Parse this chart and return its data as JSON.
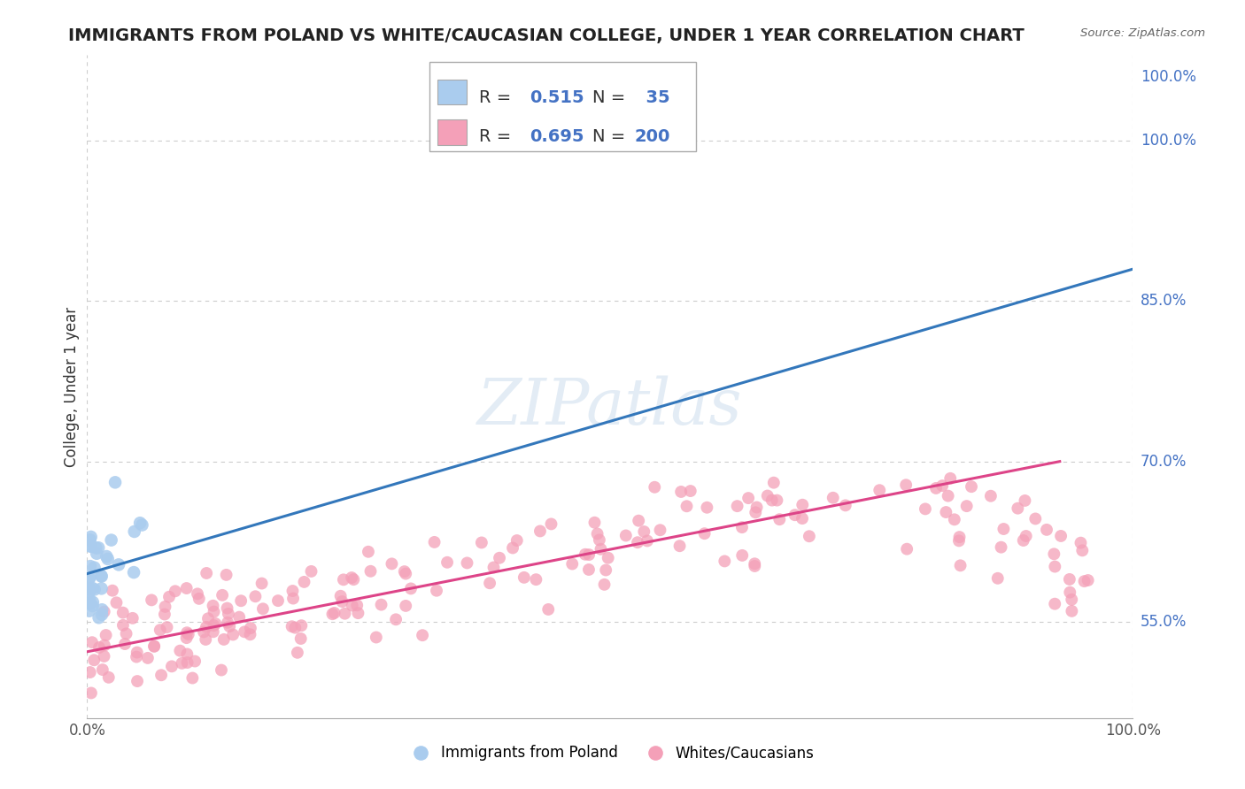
{
  "title": "IMMIGRANTS FROM POLAND VS WHITE/CAUCASIAN COLLEGE, UNDER 1 YEAR CORRELATION CHART",
  "source": "Source: ZipAtlas.com",
  "ylabel": "College, Under 1 year",
  "xlim": [
    0.0,
    1.0
  ],
  "ylim": [
    0.46,
    1.08
  ],
  "yticks": [
    0.55,
    0.7,
    0.85,
    1.0
  ],
  "ytick_labels": [
    "55.0%",
    "70.0%",
    "85.0%",
    "100.0%"
  ],
  "xtick_labels": [
    "0.0%",
    "100.0%"
  ],
  "blue_R": 0.515,
  "blue_N": 35,
  "pink_R": 0.695,
  "pink_N": 200,
  "blue_color": "#aaccee",
  "pink_color": "#f4a0b8",
  "blue_line_color": "#3377bb",
  "pink_line_color": "#dd4488",
  "background_color": "#ffffff",
  "grid_color": "#cccccc",
  "watermark": "ZIPatlas",
  "title_fontsize": 14,
  "label_fontsize": 12,
  "tick_fontsize": 12,
  "legend_fontsize": 14,
  "blue_line_x0": 0.0,
  "blue_line_y0": 0.595,
  "blue_line_x1": 1.0,
  "blue_line_y1": 0.88,
  "pink_line_x0": 0.0,
  "pink_line_y0": 0.522,
  "pink_line_x1": 0.93,
  "pink_line_y1": 0.7,
  "right_label_color": "#4472c4",
  "seed": 42
}
